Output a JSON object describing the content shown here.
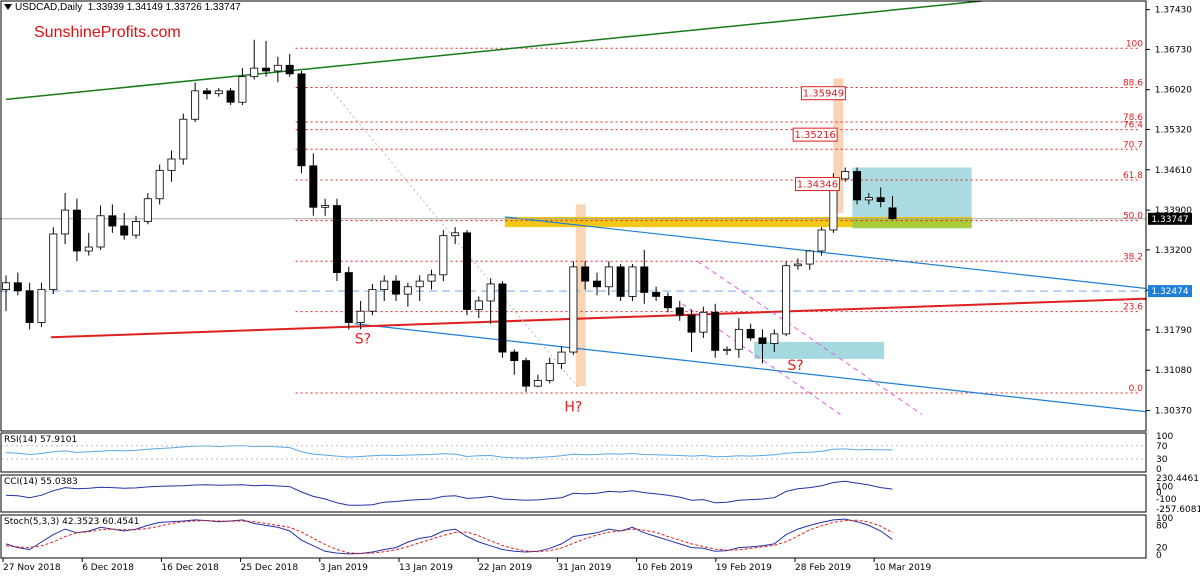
{
  "chart_data": {
    "type": "candlestick",
    "header": {
      "symbol_text": "USDCAD,Daily",
      "ohlc_text": "1.33939 1.34149 1.33726 1.33747"
    },
    "watermark": "SunshineProfits.com",
    "price_axis": {
      "range": [
        1.3001,
        1.376
      ],
      "ticks": [
        "1.37430",
        "1.36730",
        "1.36020",
        "1.35320",
        "1.34610",
        "1.33900",
        "1.33200",
        "1.32490",
        "1.31790",
        "1.31080",
        "1.30370"
      ],
      "current_price": "1.33747",
      "blue_level": "1.32474"
    },
    "x_axis": {
      "labels": [
        "27 Nov 2018",
        "6 Dec 2018",
        "16 Dec 2018",
        "25 Dec 2018",
        "3 Jan 2019",
        "13 Jan 2019",
        "22 Jan 2019",
        "31 Jan 2019",
        "10 Feb 2019",
        "19 Feb 2019",
        "28 Feb 2019",
        "10 Mar 2019"
      ]
    },
    "fibonacci": {
      "high": 1.3675,
      "low": 1.3068,
      "levels": [
        "100",
        "88.6",
        "78.6",
        "76.4",
        "70.7",
        "61.8",
        "50.0",
        "38.2",
        "23.6",
        "0.0"
      ]
    },
    "target_boxes": [
      "1.35949",
      "1.35216",
      "1.34346"
    ],
    "pattern_labels": [
      "S?",
      "H?",
      "S?"
    ],
    "colors": {
      "bull": "#ffffff",
      "bear": "#000000",
      "uptrend": "#1a7a1a",
      "channel": "#1e7fd8",
      "neckline": "#e02020",
      "fib": "#e02020",
      "zone_yellow": "#f2c200",
      "zone_blue": "#8fcfd8",
      "zone_orange": "#f5b27a",
      "stoch_signal": "#e02020",
      "indicator": "#2233aa",
      "rsi": "#5aa7e6"
    },
    "candles": [
      [
        1.325,
        1.3275,
        1.3212,
        1.3262
      ],
      [
        1.3262,
        1.328,
        1.324,
        1.3248
      ],
      [
        1.3248,
        1.3262,
        1.318,
        1.3192
      ],
      [
        1.3192,
        1.3262,
        1.3184,
        1.325
      ],
      [
        1.325,
        1.336,
        1.3242,
        1.3348
      ],
      [
        1.3348,
        1.342,
        1.333,
        1.339
      ],
      [
        1.339,
        1.341,
        1.33,
        1.3318
      ],
      [
        1.3318,
        1.335,
        1.331,
        1.3325
      ],
      [
        1.3325,
        1.3398,
        1.332,
        1.338
      ],
      [
        1.338,
        1.34,
        1.335,
        1.3362
      ],
      [
        1.3362,
        1.3385,
        1.3338,
        1.3346
      ],
      [
        1.3346,
        1.338,
        1.334,
        1.337
      ],
      [
        1.337,
        1.342,
        1.3365,
        1.341
      ],
      [
        1.341,
        1.347,
        1.34,
        1.346
      ],
      [
        1.346,
        1.3495,
        1.344,
        1.348
      ],
      [
        1.348,
        1.356,
        1.347,
        1.355
      ],
      [
        1.355,
        1.3615,
        1.3545,
        1.36
      ],
      [
        1.36,
        1.3605,
        1.3585,
        1.3595
      ],
      [
        1.3595,
        1.3605,
        1.359,
        1.36
      ],
      [
        1.36,
        1.3605,
        1.3575,
        1.358
      ],
      [
        1.358,
        1.364,
        1.3575,
        1.3625
      ],
      [
        1.3625,
        1.369,
        1.362,
        1.364
      ],
      [
        1.364,
        1.3688,
        1.3625,
        1.3635
      ],
      [
        1.3635,
        1.366,
        1.3615,
        1.3645
      ],
      [
        1.3645,
        1.3665,
        1.3625,
        1.363
      ],
      [
        1.363,
        1.3635,
        1.3455,
        1.3468
      ],
      [
        1.3468,
        1.349,
        1.338,
        1.3395
      ],
      [
        1.3395,
        1.341,
        1.338,
        1.3398
      ],
      [
        1.3398,
        1.341,
        1.3265,
        1.328
      ],
      [
        1.328,
        1.329,
        1.318,
        1.3192
      ],
      [
        1.3192,
        1.323,
        1.318,
        1.3212
      ],
      [
        1.3212,
        1.326,
        1.3205,
        1.325
      ],
      [
        1.325,
        1.3275,
        1.323,
        1.3265
      ],
      [
        1.3265,
        1.3275,
        1.323,
        1.3242
      ],
      [
        1.3242,
        1.3262,
        1.322,
        1.3255
      ],
      [
        1.3255,
        1.3275,
        1.323,
        1.3265
      ],
      [
        1.3265,
        1.3285,
        1.325,
        1.3276
      ],
      [
        1.3276,
        1.3355,
        1.3265,
        1.3345
      ],
      [
        1.3345,
        1.336,
        1.333,
        1.335
      ],
      [
        1.335,
        1.3355,
        1.3205,
        1.3215
      ],
      [
        1.3215,
        1.3238,
        1.32,
        1.323
      ],
      [
        1.323,
        1.327,
        1.319,
        1.326
      ],
      [
        1.326,
        1.3265,
        1.313,
        1.314
      ],
      [
        1.314,
        1.3145,
        1.31,
        1.3125
      ],
      [
        1.3125,
        1.313,
        1.307,
        1.308
      ],
      [
        1.308,
        1.31,
        1.3078,
        1.309
      ],
      [
        1.309,
        1.313,
        1.3085,
        1.312
      ],
      [
        1.312,
        1.315,
        1.311,
        1.314
      ],
      [
        1.314,
        1.33,
        1.3135,
        1.329
      ],
      [
        1.329,
        1.33,
        1.325,
        1.3265
      ],
      [
        1.3265,
        1.328,
        1.324,
        1.3255
      ],
      [
        1.3255,
        1.33,
        1.324,
        1.329
      ],
      [
        1.329,
        1.3295,
        1.323,
        1.3238
      ],
      [
        1.3238,
        1.3295,
        1.323,
        1.329
      ],
      [
        1.329,
        1.332,
        1.3225,
        1.3245
      ],
      [
        1.3245,
        1.3255,
        1.323,
        1.3238
      ],
      [
        1.3238,
        1.3245,
        1.321,
        1.3218
      ],
      [
        1.3218,
        1.323,
        1.3195,
        1.3205
      ],
      [
        1.3205,
        1.3215,
        1.314,
        1.3175
      ],
      [
        1.3175,
        1.322,
        1.3165,
        1.321
      ],
      [
        1.321,
        1.3225,
        1.313,
        1.3143
      ],
      [
        1.3143,
        1.315,
        1.3135,
        1.3145
      ],
      [
        1.3145,
        1.32,
        1.313,
        1.318
      ],
      [
        1.318,
        1.319,
        1.316,
        1.3165
      ],
      [
        1.3165,
        1.318,
        1.312,
        1.3155
      ],
      [
        1.3155,
        1.318,
        1.314,
        1.3172
      ],
      [
        1.3172,
        1.33,
        1.3168,
        1.3292
      ],
      [
        1.3292,
        1.3305,
        1.3285,
        1.3295
      ],
      [
        1.3295,
        1.332,
        1.3285,
        1.3318
      ],
      [
        1.3318,
        1.336,
        1.331,
        1.3355
      ],
      [
        1.3355,
        1.3455,
        1.335,
        1.3445
      ],
      [
        1.3445,
        1.3465,
        1.344,
        1.3458
      ],
      [
        1.3458,
        1.3465,
        1.34,
        1.3408
      ],
      [
        1.3408,
        1.342,
        1.34,
        1.3412
      ],
      [
        1.3412,
        1.343,
        1.3395,
        1.3405
      ],
      [
        1.3394,
        1.3415,
        1.3373,
        1.3375
      ]
    ],
    "indicators": {
      "rsi": {
        "label": "RSI(14) 57.9101",
        "scale": [
          "100",
          "70",
          "30",
          "0"
        ],
        "values": [
          50,
          48,
          44,
          47,
          52,
          55,
          50,
          52,
          54,
          56,
          55,
          57,
          60,
          62,
          64,
          67,
          69,
          70,
          68,
          70,
          71,
          68,
          69,
          67,
          65,
          52,
          45,
          42,
          39,
          36,
          38,
          40,
          42,
          41,
          42,
          43,
          44,
          46,
          45,
          38,
          40,
          41,
          36,
          34,
          33,
          35,
          37,
          40,
          45,
          43,
          44,
          46,
          45,
          47,
          44,
          43,
          42,
          41,
          39,
          41,
          37,
          38,
          40,
          39,
          41,
          43,
          48,
          50,
          51,
          54,
          60,
          61,
          58,
          59,
          58,
          58
        ]
      },
      "cci": {
        "label": "CCI(14) 55.0383",
        "scale": [
          "230.4461",
          "100",
          "0",
          "-100",
          "-257.6081"
        ],
        "values": [
          -40,
          -50,
          -80,
          -40,
          30,
          80,
          60,
          70,
          85,
          80,
          70,
          75,
          90,
          100,
          105,
          110,
          120,
          125,
          115,
          120,
          125,
          110,
          115,
          105,
          95,
          10,
          -60,
          -100,
          -160,
          -200,
          -200,
          -190,
          -150,
          -140,
          -120,
          -110,
          -100,
          -60,
          -50,
          -90,
          -80,
          -60,
          -100,
          -110,
          -120,
          -115,
          -95,
          -80,
          -10,
          -20,
          -10,
          20,
          10,
          30,
          0,
          -20,
          -40,
          -70,
          -120,
          -110,
          -160,
          -150,
          -120,
          -110,
          -100,
          -80,
          20,
          60,
          80,
          110,
          160,
          180,
          150,
          120,
          80,
          55
        ]
      },
      "stoch": {
        "label": "Stoch(5,3,3) 42.3523 60.4541",
        "scale": [
          "100",
          "80",
          "20",
          "0"
        ],
        "main": [
          30,
          20,
          15,
          35,
          55,
          70,
          60,
          65,
          75,
          70,
          65,
          70,
          80,
          88,
          90,
          92,
          95,
          93,
          90,
          92,
          95,
          85,
          80,
          75,
          65,
          40,
          25,
          10,
          5,
          3,
          4,
          8,
          15,
          20,
          35,
          45,
          50,
          65,
          70,
          50,
          35,
          25,
          15,
          10,
          8,
          10,
          18,
          30,
          50,
          55,
          60,
          70,
          65,
          75,
          60,
          50,
          40,
          30,
          20,
          18,
          10,
          12,
          20,
          22,
          25,
          30,
          55,
          70,
          80,
          88,
          95,
          97,
          90,
          80,
          65,
          42
        ],
        "signal": [
          25,
          22,
          20,
          25,
          35,
          50,
          60,
          63,
          68,
          70,
          68,
          68,
          72,
          78,
          85,
          90,
          92,
          93,
          92,
          91,
          92,
          90,
          85,
          80,
          75,
          62,
          45,
          28,
          15,
          6,
          4,
          5,
          9,
          14,
          23,
          33,
          43,
          53,
          61,
          62,
          52,
          38,
          26,
          17,
          11,
          9,
          12,
          19,
          32,
          44,
          54,
          62,
          65,
          70,
          67,
          61,
          50,
          40,
          30,
          23,
          16,
          13,
          14,
          18,
          22,
          26,
          36,
          51,
          68,
          79,
          88,
          93,
          94,
          89,
          78,
          60
        ]
      }
    }
  }
}
